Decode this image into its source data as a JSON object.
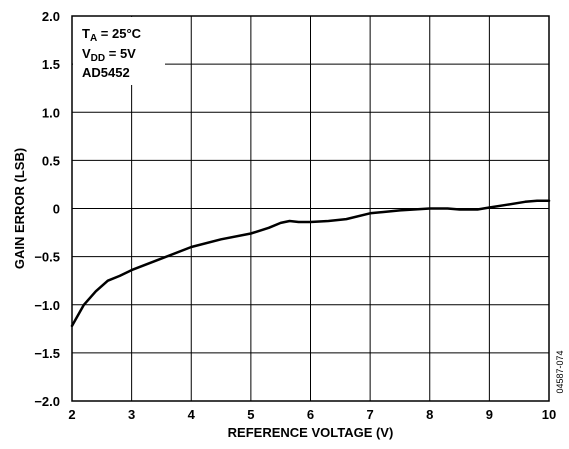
{
  "chart_data": {
    "type": "line",
    "xlabel": "REFERENCE VOLTAGE (V)",
    "ylabel": "GAIN ERROR (LSB)",
    "xlim": [
      2,
      10
    ],
    "ylim": [
      -2.0,
      2.0
    ],
    "x_ticks": [
      2,
      3,
      4,
      5,
      6,
      7,
      8,
      9,
      10
    ],
    "x_tick_labels": [
      "2",
      "3",
      "4",
      "5",
      "6",
      "7",
      "8",
      "9",
      "10"
    ],
    "y_ticks": [
      2.0,
      1.5,
      1.0,
      0.5,
      0,
      -0.5,
      -1.0,
      -1.5,
      -2.0
    ],
    "y_tick_labels": [
      "2.0",
      "1.5",
      "1.0",
      "0.5",
      "0",
      "−0.5",
      "−1.0",
      "−1.5",
      "−2.0"
    ],
    "grid": true,
    "annotation": {
      "ta_main": "T",
      "ta_sub": "A",
      "ta_rest": " = 25°C",
      "vdd_main": "V",
      "vdd_sub": "DD",
      "vdd_rest": " = 5V",
      "part": "AD5452"
    },
    "figure_id": "04587-074",
    "series": [
      {
        "x": [
          2.0,
          2.2,
          2.4,
          2.6,
          2.8,
          3.0,
          3.5,
          4.0,
          4.5,
          5.0,
          5.3,
          5.5,
          5.65,
          5.8,
          6.0,
          6.3,
          6.6,
          7.0,
          7.5,
          8.0,
          8.3,
          8.5,
          8.8,
          9.0,
          9.3,
          9.6,
          9.8,
          10.0
        ],
        "y": [
          -1.22,
          -1.0,
          -0.86,
          -0.75,
          -0.7,
          -0.64,
          -0.52,
          -0.4,
          -0.32,
          -0.26,
          -0.2,
          -0.15,
          -0.13,
          -0.14,
          -0.14,
          -0.13,
          -0.11,
          -0.05,
          -0.02,
          0.0,
          0.0,
          -0.01,
          -0.01,
          0.01,
          0.04,
          0.07,
          0.08,
          0.08
        ]
      }
    ],
    "line_color": "#000000",
    "grid_color": "#000000"
  }
}
